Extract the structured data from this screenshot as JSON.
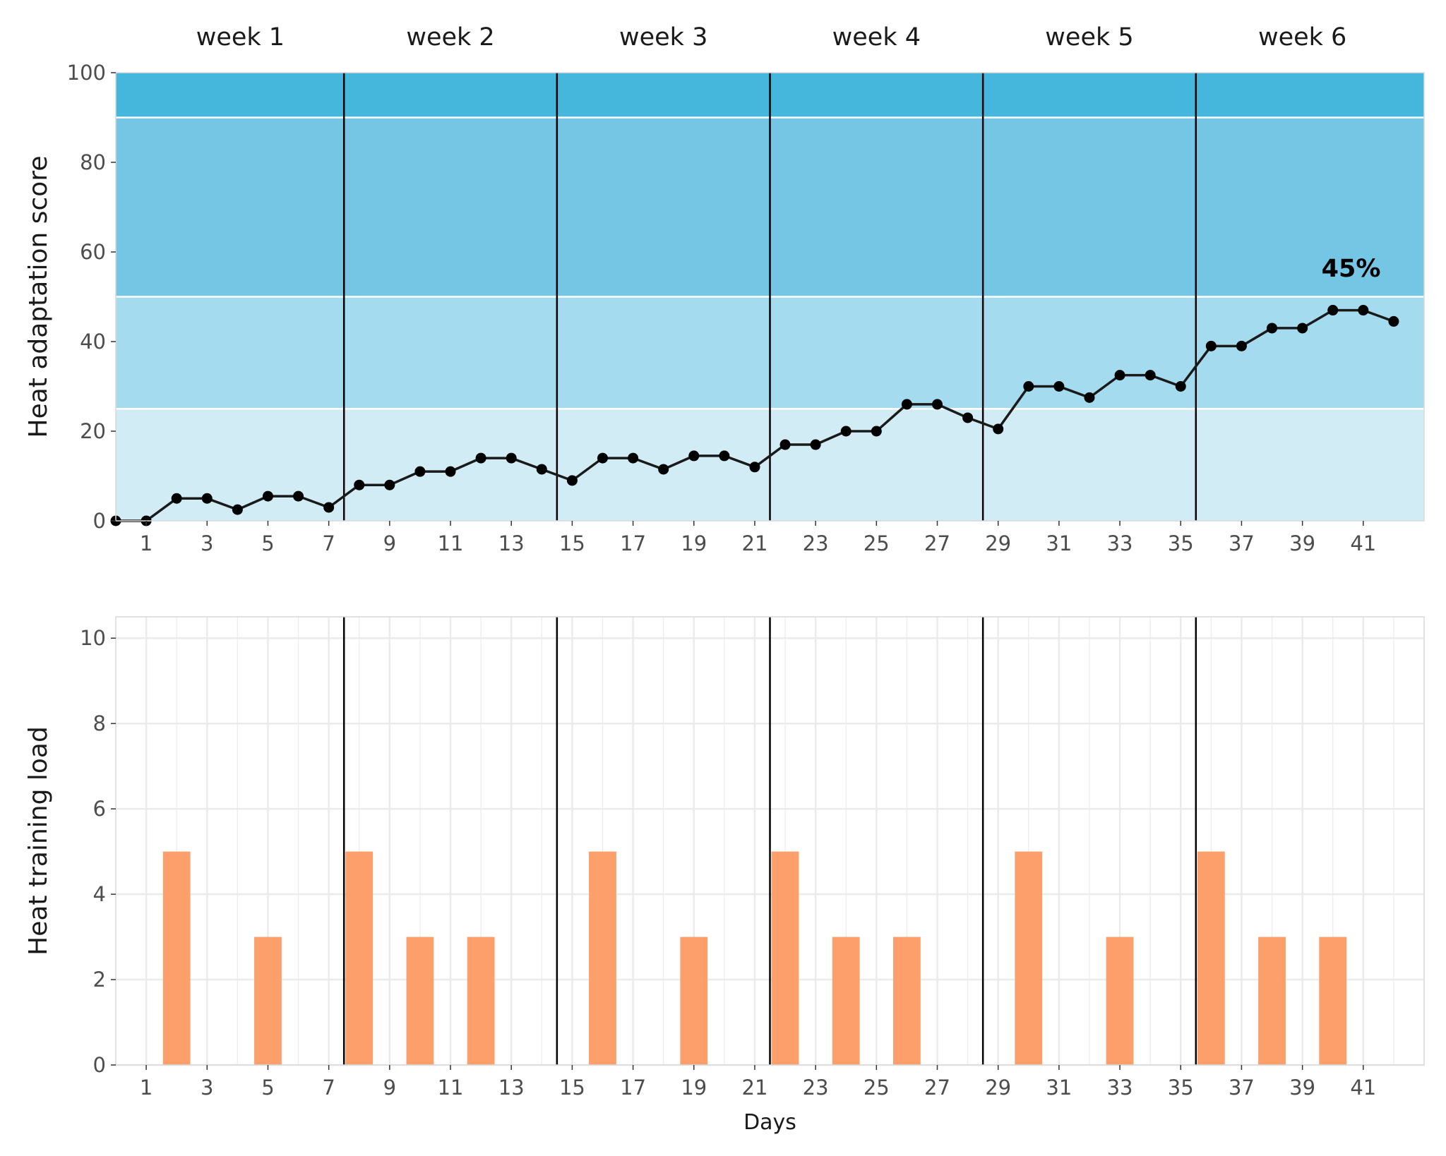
{
  "colors": {
    "band_0_25": "#d2ecf5",
    "band_25_50": "#a4dbee",
    "band_50_90": "#74c6e4",
    "band_90_100": "#45b7dc",
    "score_line": "#1a1a1a",
    "load_bar": "#fc9f6b",
    "week_divider": "#000000",
    "grid": "#ebebeb"
  },
  "weeks": [
    "week 1",
    "week 2",
    "week 3",
    "week 4",
    "week 5",
    "week 6"
  ],
  "chart_data": [
    {
      "type": "line",
      "ylabel": "Heat adaptation score",
      "xlabel": "",
      "ylim": [
        0,
        100
      ],
      "yticks": [
        0,
        20,
        40,
        60,
        80,
        100
      ],
      "xlim": [
        0,
        43
      ],
      "xticks": [
        1,
        3,
        5,
        7,
        9,
        11,
        13,
        15,
        17,
        19,
        21,
        23,
        25,
        27,
        29,
        31,
        33,
        35,
        37,
        39,
        41
      ],
      "background_bands": [
        [
          0,
          25
        ],
        [
          25,
          50
        ],
        [
          50,
          90
        ],
        [
          90,
          100
        ]
      ],
      "week_dividers": [
        7.5,
        14.5,
        21.5,
        28.5,
        35.5
      ],
      "x": [
        0,
        1,
        2,
        3,
        4,
        5,
        6,
        7,
        8,
        9,
        10,
        11,
        12,
        13,
        14,
        15,
        16,
        17,
        18,
        19,
        20,
        21,
        22,
        23,
        24,
        25,
        26,
        27,
        28,
        29,
        30,
        31,
        32,
        33,
        34,
        35,
        36,
        37,
        38,
        39,
        40,
        41,
        42
      ],
      "y": [
        0,
        0,
        5,
        5,
        2.5,
        5.5,
        5.5,
        3,
        8,
        8,
        11,
        11,
        14,
        14,
        11.5,
        9,
        14,
        14,
        11.5,
        14.5,
        14.5,
        12,
        17,
        17,
        20,
        20,
        26,
        26,
        23,
        20.5,
        30,
        30,
        27.5,
        32.5,
        32.5,
        30,
        39,
        39,
        43,
        43,
        47,
        47,
        44.5
      ],
      "annotation": "45%"
    },
    {
      "type": "bar",
      "ylabel": "Heat training load",
      "xlabel": "Days",
      "ylim": [
        0,
        10.5
      ],
      "yticks": [
        0,
        2,
        4,
        6,
        8,
        10
      ],
      "xlim": [
        0,
        43
      ],
      "xticks": [
        1,
        3,
        5,
        7,
        9,
        11,
        13,
        15,
        17,
        19,
        21,
        23,
        25,
        27,
        29,
        31,
        33,
        35,
        37,
        39,
        41
      ],
      "week_dividers": [
        7.5,
        14.5,
        21.5,
        28.5,
        35.5
      ],
      "categories": [
        2,
        5,
        8,
        10,
        12,
        16,
        19,
        22,
        24,
        26,
        30,
        33,
        36,
        38,
        40
      ],
      "values": [
        5,
        3,
        5,
        3,
        3,
        5,
        3,
        5,
        3,
        3,
        5,
        3,
        5,
        3,
        3
      ]
    }
  ]
}
